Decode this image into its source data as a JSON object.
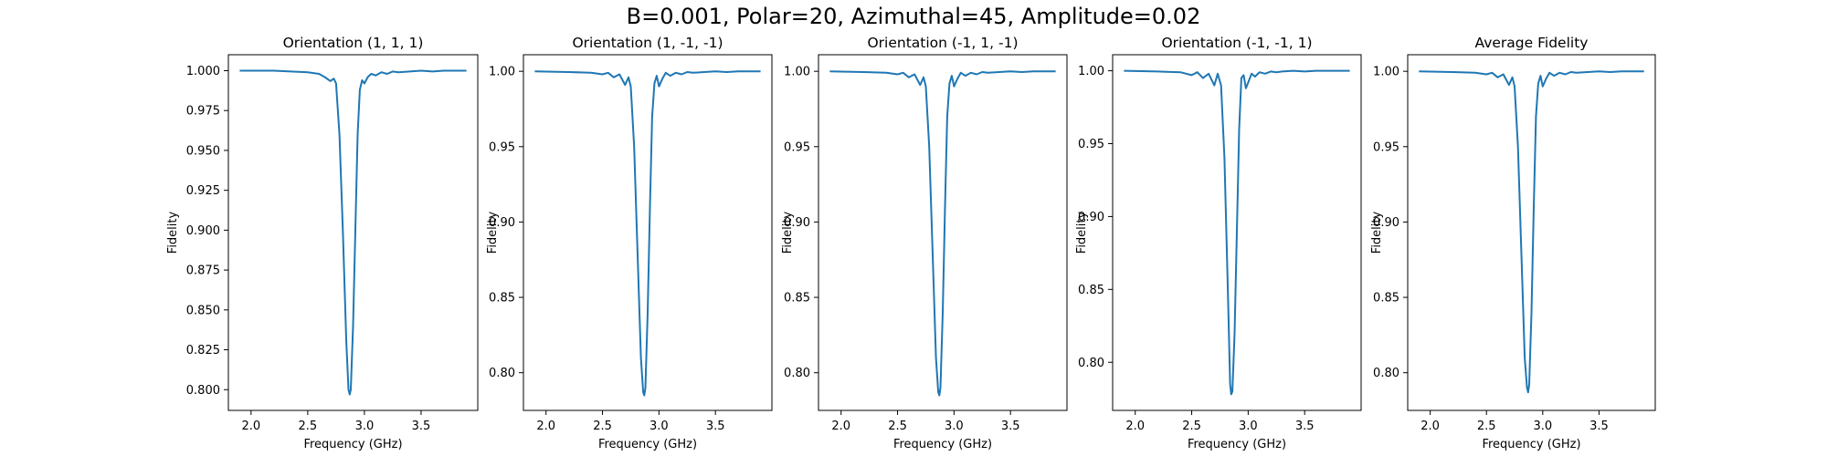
{
  "figure": {
    "suptitle": "B=0.001, Polar=20, Azimuthal=45, Amplitude=0.02"
  },
  "chart_data": [
    {
      "type": "line",
      "title": "Orientation (1, 1, 1)",
      "xlabel": "Frequency (GHz)",
      "ylabel": "Fidelity",
      "xlim": [
        1.8,
        4.0
      ],
      "ylim": [
        0.787,
        1.01
      ],
      "xticks": [
        "2.0",
        "2.5",
        "3.0",
        "3.5"
      ],
      "yticks": [
        "0.800",
        "0.825",
        "0.850",
        "0.875",
        "0.900",
        "0.925",
        "0.950",
        "0.975",
        "1.000"
      ],
      "series": [
        {
          "color": "#1f77b4",
          "x": [
            1.9,
            2.2,
            2.5,
            2.6,
            2.65,
            2.7,
            2.73,
            2.75,
            2.78,
            2.81,
            2.84,
            2.86,
            2.87,
            2.88,
            2.9,
            2.92,
            2.94,
            2.96,
            2.98,
            3.0,
            3.03,
            3.06,
            3.1,
            3.15,
            3.2,
            3.25,
            3.3,
            3.4,
            3.5,
            3.6,
            3.7,
            3.8,
            3.9
          ],
          "y": [
            1.0,
            1.0,
            0.999,
            0.998,
            0.996,
            0.9935,
            0.995,
            0.992,
            0.96,
            0.9,
            0.83,
            0.8,
            0.797,
            0.8,
            0.84,
            0.9,
            0.96,
            0.988,
            0.994,
            0.992,
            0.996,
            0.998,
            0.997,
            0.999,
            0.998,
            0.9995,
            0.999,
            0.9995,
            1.0,
            0.9995,
            1.0,
            1.0,
            1.0
          ]
        }
      ]
    },
    {
      "type": "line",
      "title": "Orientation (1, -1, -1)",
      "xlabel": "Frequency (GHz)",
      "ylabel": "Fidelity",
      "xlim": [
        1.8,
        4.0
      ],
      "ylim": [
        0.775,
        1.011
      ],
      "xticks": [
        "2.0",
        "2.5",
        "3.0",
        "3.5"
      ],
      "yticks": [
        "0.80",
        "0.85",
        "0.90",
        "0.95",
        "1.00"
      ],
      "series": [
        {
          "color": "#1f77b4",
          "x": [
            1.9,
            2.2,
            2.4,
            2.5,
            2.55,
            2.6,
            2.65,
            2.7,
            2.73,
            2.75,
            2.78,
            2.81,
            2.84,
            2.86,
            2.87,
            2.88,
            2.9,
            2.92,
            2.94,
            2.96,
            2.98,
            3.0,
            3.03,
            3.06,
            3.1,
            3.15,
            3.2,
            3.25,
            3.3,
            3.4,
            3.5,
            3.6,
            3.7,
            3.8,
            3.9
          ],
          "y": [
            1.0,
            0.9995,
            0.999,
            0.998,
            0.999,
            0.996,
            0.998,
            0.991,
            0.996,
            0.99,
            0.95,
            0.88,
            0.81,
            0.787,
            0.785,
            0.79,
            0.84,
            0.91,
            0.97,
            0.992,
            0.997,
            0.99,
            0.995,
            0.999,
            0.997,
            0.999,
            0.998,
            0.9995,
            0.999,
            0.9995,
            1.0,
            0.9995,
            1.0,
            1.0,
            1.0
          ]
        }
      ]
    },
    {
      "type": "line",
      "title": "Orientation (-1, 1, -1)",
      "xlabel": "Frequency (GHz)",
      "ylabel": "Fidelity",
      "xlim": [
        1.8,
        4.0
      ],
      "ylim": [
        0.775,
        1.011
      ],
      "xticks": [
        "2.0",
        "2.5",
        "3.0",
        "3.5"
      ],
      "yticks": [
        "0.80",
        "0.85",
        "0.90",
        "0.95",
        "1.00"
      ],
      "series": [
        {
          "color": "#1f77b4",
          "x": [
            1.9,
            2.2,
            2.4,
            2.5,
            2.55,
            2.6,
            2.65,
            2.7,
            2.73,
            2.75,
            2.78,
            2.81,
            2.84,
            2.86,
            2.87,
            2.88,
            2.9,
            2.92,
            2.94,
            2.96,
            2.98,
            3.0,
            3.03,
            3.06,
            3.1,
            3.15,
            3.2,
            3.25,
            3.3,
            3.4,
            3.5,
            3.6,
            3.7,
            3.8,
            3.9
          ],
          "y": [
            1.0,
            0.9995,
            0.999,
            0.998,
            0.999,
            0.996,
            0.998,
            0.991,
            0.996,
            0.99,
            0.95,
            0.88,
            0.81,
            0.787,
            0.785,
            0.79,
            0.84,
            0.91,
            0.97,
            0.992,
            0.997,
            0.99,
            0.995,
            0.999,
            0.997,
            0.999,
            0.998,
            0.9995,
            0.999,
            0.9995,
            1.0,
            0.9995,
            1.0,
            1.0,
            1.0
          ]
        }
      ]
    },
    {
      "type": "line",
      "title": "Orientation (-1, -1, 1)",
      "xlabel": "Frequency (GHz)",
      "ylabel": "Fidelity",
      "xlim": [
        1.8,
        4.0
      ],
      "ylim": [
        0.767,
        1.011
      ],
      "xticks": [
        "2.0",
        "2.5",
        "3.0",
        "3.5"
      ],
      "yticks": [
        "0.80",
        "0.85",
        "0.90",
        "0.95",
        "1.00"
      ],
      "series": [
        {
          "color": "#1f77b4",
          "x": [
            1.9,
            2.2,
            2.4,
            2.5,
            2.55,
            2.6,
            2.65,
            2.7,
            2.73,
            2.76,
            2.79,
            2.82,
            2.84,
            2.85,
            2.86,
            2.88,
            2.9,
            2.92,
            2.94,
            2.96,
            2.98,
            3.0,
            3.03,
            3.06,
            3.1,
            3.15,
            3.2,
            3.25,
            3.3,
            3.4,
            3.5,
            3.6,
            3.7,
            3.8,
            3.9
          ],
          "y": [
            1.0,
            0.9995,
            0.999,
            0.997,
            0.999,
            0.995,
            0.998,
            0.99,
            0.998,
            0.99,
            0.94,
            0.85,
            0.785,
            0.778,
            0.78,
            0.82,
            0.89,
            0.96,
            0.995,
            0.997,
            0.988,
            0.992,
            0.998,
            0.996,
            0.999,
            0.998,
            0.9995,
            0.999,
            0.9995,
            1.0,
            0.9995,
            1.0,
            1.0,
            1.0,
            1.0
          ]
        }
      ]
    },
    {
      "type": "line",
      "title": "Average Fidelity",
      "xlabel": "Frequency (GHz)",
      "ylabel": "Fidelity",
      "xlim": [
        1.8,
        4.0
      ],
      "ylim": [
        0.775,
        1.011
      ],
      "xticks": [
        "2.0",
        "2.5",
        "3.0",
        "3.5"
      ],
      "yticks": [
        "0.80",
        "0.85",
        "0.90",
        "0.95",
        "1.00"
      ],
      "series": [
        {
          "color": "#1f77b4",
          "x": [
            1.9,
            2.2,
            2.4,
            2.5,
            2.55,
            2.6,
            2.65,
            2.7,
            2.73,
            2.75,
            2.78,
            2.81,
            2.84,
            2.86,
            2.87,
            2.88,
            2.9,
            2.92,
            2.94,
            2.96,
            2.98,
            3.0,
            3.03,
            3.06,
            3.1,
            3.15,
            3.2,
            3.25,
            3.3,
            3.4,
            3.5,
            3.6,
            3.7,
            3.8,
            3.9
          ],
          "y": [
            1.0,
            0.9995,
            0.999,
            0.998,
            0.999,
            0.996,
            0.998,
            0.991,
            0.996,
            0.99,
            0.95,
            0.88,
            0.81,
            0.79,
            0.787,
            0.792,
            0.84,
            0.91,
            0.97,
            0.992,
            0.997,
            0.99,
            0.995,
            0.999,
            0.997,
            0.999,
            0.998,
            0.9995,
            0.999,
            0.9995,
            1.0,
            0.9995,
            1.0,
            1.0,
            1.0
          ]
        }
      ]
    }
  ]
}
